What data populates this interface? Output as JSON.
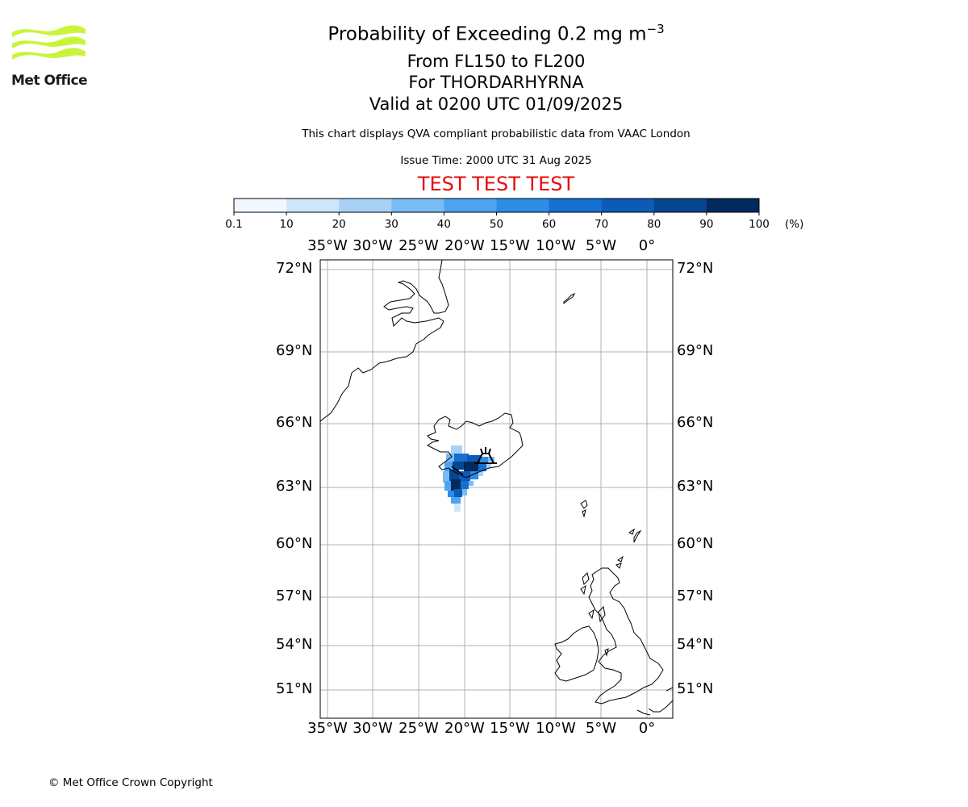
{
  "logo": {
    "text": "Met Office",
    "color": "#c8f53c"
  },
  "header": {
    "title": "Probability of Exceeding 0.2 mg m",
    "title_superscript": "−3",
    "flight_levels": "From FL150 to FL200",
    "volcano": "For THORDARHYRNA",
    "valid_time": "Valid at 0200 UTC 01/09/2025",
    "description": "This chart displays QVA compliant probabilistic data from VAAC London",
    "issue_time": "Issue Time: 2000 UTC 31 Aug 2025",
    "test_banner": "TEST TEST TEST"
  },
  "colorbar": {
    "unit": "(%)",
    "labels": [
      "0.1",
      "10",
      "20",
      "30",
      "40",
      "50",
      "60",
      "70",
      "80",
      "90",
      "100"
    ],
    "colors": [
      "#f0f7ff",
      "#cfe5fa",
      "#a8d1f6",
      "#79bcf3",
      "#4da4f0",
      "#2b8de6",
      "#1470d2",
      "#0c5bb6",
      "#07458e",
      "#032a5e"
    ]
  },
  "map": {
    "lon_labels": [
      "35°W",
      "30°W",
      "25°W",
      "20°W",
      "15°W",
      "10°W",
      "5°W",
      "0°"
    ],
    "lat_labels": [
      "72°N",
      "69°N",
      "66°N",
      "63°N",
      "60°N",
      "57°N",
      "54°N",
      "51°N"
    ],
    "gridline_color": "#b0b0b0",
    "volcano_marker": "volcano-icon"
  },
  "footer": {
    "copyright": "© Met Office Crown Copyright"
  }
}
